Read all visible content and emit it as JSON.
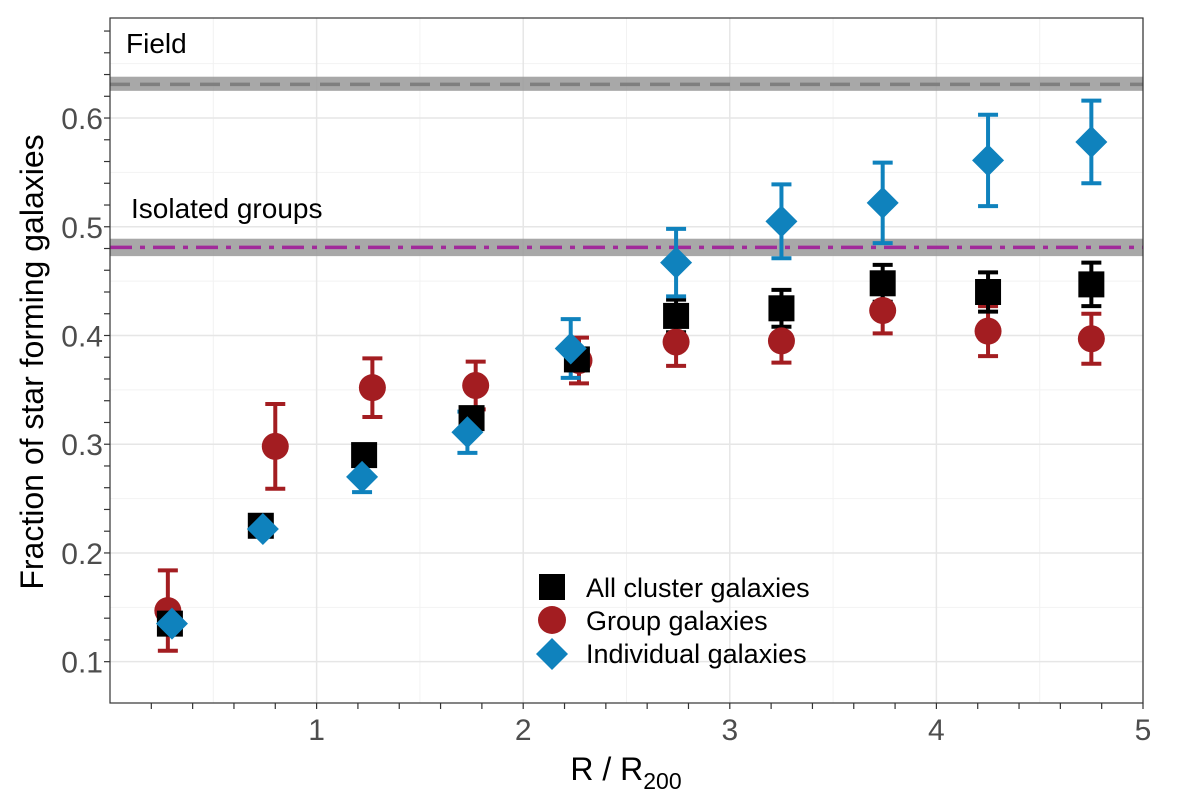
{
  "chart_data": {
    "type": "scatter",
    "xlabel": "R / R",
    "xlabel_subscript": "200",
    "ylabel": "Fraction of star forming galaxies",
    "xlim": [
      0,
      5
    ],
    "ylim": [
      0.062,
      0.692
    ],
    "x_ticks": [
      1,
      2,
      3,
      4,
      5
    ],
    "x_tick_labels": [
      "1",
      "2",
      "3",
      "4",
      "5"
    ],
    "y_ticks": [
      0.1,
      0.2,
      0.3,
      0.4,
      0.5,
      0.6
    ],
    "y_tick_labels": [
      "0.1",
      "0.2",
      "0.3",
      "0.4",
      "0.5",
      "0.6"
    ],
    "grid": true,
    "legend_position": "bottom-center",
    "reference_lines": [
      {
        "label": "Field",
        "y": 0.631,
        "band": [
          0.625,
          0.638
        ],
        "style": "dashed",
        "color": "#7f7f7f"
      },
      {
        "label": "Isolated groups",
        "y": 0.481,
        "band": [
          0.473,
          0.489
        ],
        "style": "dashdot",
        "color": "#a12a9a"
      }
    ],
    "series": [
      {
        "name": "All cluster galaxies",
        "marker": "square",
        "color": "#000000",
        "x": [
          0.29,
          0.73,
          1.23,
          1.75,
          2.26,
          2.74,
          3.25,
          3.74,
          4.25,
          4.75
        ],
        "y": [
          0.135,
          0.225,
          0.29,
          0.324,
          0.378,
          0.418,
          0.425,
          0.448,
          0.44,
          0.447
        ],
        "err": [
          0.005,
          0.007,
          0.007,
          0.009,
          0.01,
          0.015,
          0.017,
          0.017,
          0.018,
          0.02
        ]
      },
      {
        "name": "Group galaxies",
        "marker": "circle",
        "color": "#a31d21",
        "x": [
          0.28,
          0.8,
          1.27,
          1.77,
          2.27,
          2.74,
          3.25,
          3.74,
          4.25,
          4.75
        ],
        "y": [
          0.147,
          0.298,
          0.352,
          0.354,
          0.377,
          0.394,
          0.395,
          0.423,
          0.404,
          0.397
        ],
        "err": [
          0.037,
          0.039,
          0.027,
          0.022,
          0.021,
          0.022,
          0.02,
          0.021,
          0.023,
          0.023
        ]
      },
      {
        "name": "Individual galaxies",
        "marker": "diamond",
        "color": "#0f82bd",
        "x": [
          0.3,
          0.74,
          1.22,
          1.73,
          2.23,
          2.74,
          3.25,
          3.74,
          4.25,
          4.75
        ],
        "y": [
          0.135,
          0.222,
          0.27,
          0.311,
          0.388,
          0.467,
          0.505,
          0.522,
          0.561,
          0.578
        ],
        "err": [
          0.004,
          0.006,
          0.014,
          0.019,
          0.027,
          0.031,
          0.034,
          0.037,
          0.042,
          0.038
        ]
      }
    ]
  }
}
